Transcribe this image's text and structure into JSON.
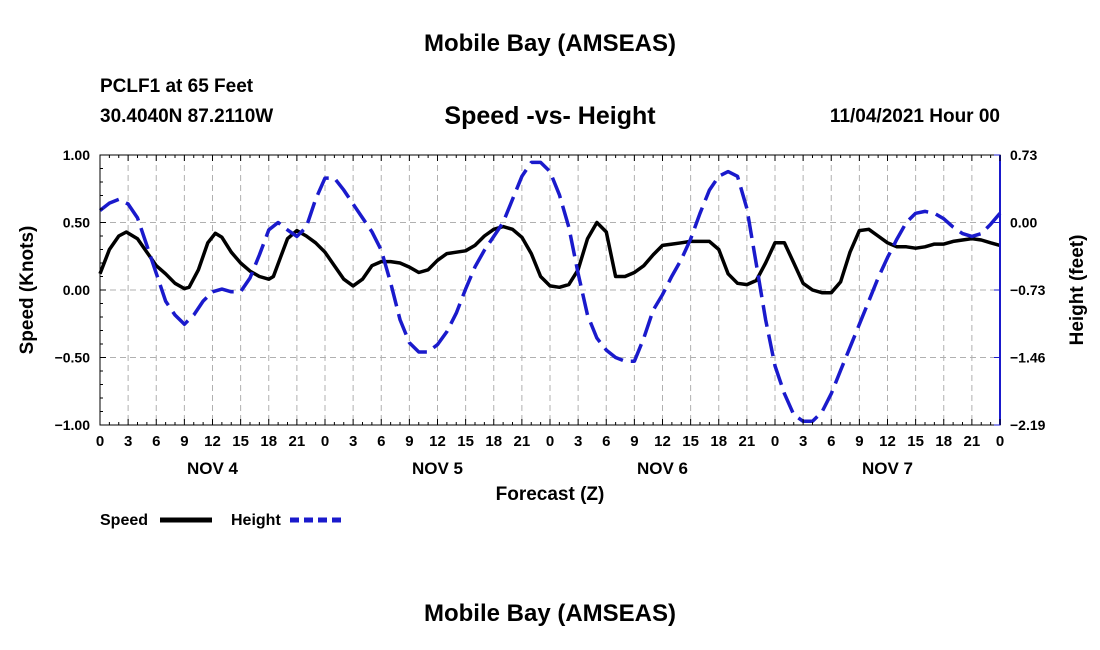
{
  "header": {
    "title": "Mobile Bay (AMSEAS)",
    "station": "PCLF1 at 65 Feet",
    "coords": "30.4040N  87.2110W",
    "subtitle": "Speed -vs- Height",
    "datetime": "11/04/2021 Hour 00"
  },
  "footer": {
    "title": "Mobile Bay (AMSEAS)"
  },
  "colors": {
    "speed": "#000000",
    "height": "#1a1acc",
    "grid": "#b0b0b0"
  },
  "chart_data": {
    "type": "line",
    "title": "Speed -vs- Height",
    "xlabel": "Forecast (Z)",
    "ylabel": "Speed (Knots)",
    "ylabel_right": "Height (feet)",
    "xlim": [
      0,
      96
    ],
    "ylim": [
      -1.0,
      1.0
    ],
    "ylim_right": [
      -2.19,
      0.73
    ],
    "x_tick_labels": [
      "0",
      "3",
      "6",
      "9",
      "12",
      "15",
      "18",
      "21",
      "0",
      "3",
      "6",
      "9",
      "12",
      "15",
      "18",
      "21",
      "0",
      "3",
      "6",
      "9",
      "12",
      "15",
      "18",
      "21",
      "0",
      "3",
      "6",
      "9",
      "12",
      "15",
      "18",
      "21",
      "0"
    ],
    "y_ticks_left": [
      "1.00",
      "0.50",
      "0.00",
      "−0.50",
      "−1.00"
    ],
    "y_ticks_right": [
      "0.73",
      "0.00",
      "−0.73",
      "−1.46",
      "−2.19"
    ],
    "day_labels": [
      {
        "label": "NOV 4",
        "x": 12
      },
      {
        "label": "NOV 5",
        "x": 36
      },
      {
        "label": "NOV 6",
        "x": 60
      },
      {
        "label": "NOV 7",
        "x": 84
      }
    ],
    "series": [
      {
        "name": "Speed",
        "axis": "left",
        "style": "solid",
        "points": [
          [
            0,
            0.12
          ],
          [
            1,
            0.3
          ],
          [
            2,
            0.4
          ],
          [
            2.8,
            0.43
          ],
          [
            4,
            0.38
          ],
          [
            5,
            0.28
          ],
          [
            6,
            0.18
          ],
          [
            7,
            0.12
          ],
          [
            8,
            0.05
          ],
          [
            9,
            0.01
          ],
          [
            9.5,
            0.02
          ],
          [
            10.5,
            0.15
          ],
          [
            11.5,
            0.35
          ],
          [
            12.3,
            0.42
          ],
          [
            13,
            0.39
          ],
          [
            14,
            0.28
          ],
          [
            15,
            0.2
          ],
          [
            16,
            0.14
          ],
          [
            17,
            0.1
          ],
          [
            18,
            0.08
          ],
          [
            18.5,
            0.1
          ],
          [
            19.3,
            0.25
          ],
          [
            20,
            0.38
          ],
          [
            21,
            0.44
          ],
          [
            22,
            0.4
          ],
          [
            23,
            0.35
          ],
          [
            24,
            0.28
          ],
          [
            25,
            0.18
          ],
          [
            26,
            0.08
          ],
          [
            27,
            0.03
          ],
          [
            28,
            0.08
          ],
          [
            29,
            0.18
          ],
          [
            30,
            0.21
          ],
          [
            31,
            0.21
          ],
          [
            32,
            0.2
          ],
          [
            33,
            0.17
          ],
          [
            34,
            0.13
          ],
          [
            35,
            0.15
          ],
          [
            36,
            0.22
          ],
          [
            37,
            0.27
          ],
          [
            38,
            0.28
          ],
          [
            39,
            0.29
          ],
          [
            40,
            0.33
          ],
          [
            41,
            0.4
          ],
          [
            42,
            0.45
          ],
          [
            43,
            0.47
          ],
          [
            44,
            0.45
          ],
          [
            45,
            0.39
          ],
          [
            46,
            0.27
          ],
          [
            47,
            0.1
          ],
          [
            48,
            0.03
          ],
          [
            49,
            0.02
          ],
          [
            50,
            0.04
          ],
          [
            51,
            0.15
          ],
          [
            52,
            0.38
          ],
          [
            53,
            0.5
          ],
          [
            54,
            0.43
          ],
          [
            55,
            0.1
          ],
          [
            56,
            0.1
          ],
          [
            57,
            0.13
          ],
          [
            58,
            0.18
          ],
          [
            59,
            0.26
          ],
          [
            60,
            0.33
          ],
          [
            61,
            0.34
          ],
          [
            62,
            0.35
          ],
          [
            63,
            0.36
          ],
          [
            64,
            0.36
          ],
          [
            65,
            0.36
          ],
          [
            66,
            0.3
          ],
          [
            67,
            0.12
          ],
          [
            68,
            0.05
          ],
          [
            69,
            0.04
          ],
          [
            70,
            0.07
          ],
          [
            71,
            0.2
          ],
          [
            72,
            0.35
          ],
          [
            73,
            0.35
          ],
          [
            74,
            0.2
          ],
          [
            75,
            0.05
          ],
          [
            76,
            0.0
          ],
          [
            77,
            -0.02
          ],
          [
            78,
            -0.02
          ],
          [
            79,
            0.06
          ],
          [
            80,
            0.28
          ],
          [
            81,
            0.44
          ],
          [
            82,
            0.45
          ],
          [
            83,
            0.4
          ],
          [
            84,
            0.35
          ],
          [
            85,
            0.32
          ],
          [
            86,
            0.32
          ],
          [
            87,
            0.31
          ],
          [
            88,
            0.32
          ],
          [
            89,
            0.34
          ],
          [
            90,
            0.34
          ],
          [
            91,
            0.36
          ],
          [
            92,
            0.37
          ],
          [
            93,
            0.38
          ],
          [
            94,
            0.37
          ],
          [
            95,
            0.35
          ],
          [
            96,
            0.33
          ]
        ]
      },
      {
        "name": "Height",
        "axis": "right",
        "style": "dashed",
        "points": [
          [
            0,
            0.13
          ],
          [
            1,
            0.21
          ],
          [
            2,
            0.25
          ],
          [
            3,
            0.2
          ],
          [
            4,
            0.05
          ],
          [
            5,
            -0.25
          ],
          [
            6,
            -0.55
          ],
          [
            7,
            -0.85
          ],
          [
            8,
            -1.0
          ],
          [
            9,
            -1.1
          ],
          [
            10,
            -1.0
          ],
          [
            11,
            -0.85
          ],
          [
            12,
            -0.75
          ],
          [
            13,
            -0.72
          ],
          [
            14,
            -0.75
          ],
          [
            15,
            -0.75
          ],
          [
            16,
            -0.6
          ],
          [
            17,
            -0.35
          ],
          [
            18,
            -0.08
          ],
          [
            19,
            0.0
          ],
          [
            20,
            -0.08
          ],
          [
            21,
            -0.15
          ],
          [
            22,
            -0.05
          ],
          [
            23,
            0.25
          ],
          [
            24,
            0.48
          ],
          [
            25,
            0.48
          ],
          [
            26,
            0.35
          ],
          [
            27,
            0.2
          ],
          [
            28,
            0.05
          ],
          [
            29,
            -0.1
          ],
          [
            30,
            -0.3
          ],
          [
            31,
            -0.65
          ],
          [
            32,
            -1.05
          ],
          [
            33,
            -1.3
          ],
          [
            34,
            -1.4
          ],
          [
            35,
            -1.4
          ],
          [
            36,
            -1.32
          ],
          [
            37,
            -1.18
          ],
          [
            38,
            -0.98
          ],
          [
            39,
            -0.72
          ],
          [
            40,
            -0.48
          ],
          [
            41,
            -0.3
          ],
          [
            42,
            -0.15
          ],
          [
            43,
            0.0
          ],
          [
            44,
            0.25
          ],
          [
            45,
            0.5
          ],
          [
            46,
            0.65
          ],
          [
            47,
            0.65
          ],
          [
            48,
            0.55
          ],
          [
            49,
            0.3
          ],
          [
            50,
            -0.05
          ],
          [
            51,
            -0.55
          ],
          [
            52,
            -1.0
          ],
          [
            53,
            -1.25
          ],
          [
            54,
            -1.38
          ],
          [
            55,
            -1.46
          ],
          [
            56,
            -1.5
          ],
          [
            57,
            -1.5
          ],
          [
            58,
            -1.25
          ],
          [
            59,
            -0.95
          ],
          [
            60,
            -0.78
          ],
          [
            61,
            -0.58
          ],
          [
            62,
            -0.4
          ],
          [
            63,
            -0.18
          ],
          [
            64,
            0.1
          ],
          [
            65,
            0.35
          ],
          [
            66,
            0.5
          ],
          [
            67,
            0.55
          ],
          [
            68,
            0.5
          ],
          [
            69,
            0.15
          ],
          [
            70,
            -0.45
          ],
          [
            71,
            -1.05
          ],
          [
            72,
            -1.55
          ],
          [
            73,
            -1.85
          ],
          [
            74,
            -2.08
          ],
          [
            75,
            -2.15
          ],
          [
            76,
            -2.15
          ],
          [
            77,
            -2.05
          ],
          [
            78,
            -1.85
          ],
          [
            79,
            -1.6
          ],
          [
            80,
            -1.35
          ],
          [
            81,
            -1.1
          ],
          [
            82,
            -0.85
          ],
          [
            83,
            -0.6
          ],
          [
            84,
            -0.38
          ],
          [
            85,
            -0.18
          ],
          [
            86,
            0.0
          ],
          [
            87,
            0.1
          ],
          [
            88,
            0.12
          ],
          [
            89,
            0.1
          ],
          [
            90,
            0.04
          ],
          [
            91,
            -0.05
          ],
          [
            92,
            -0.12
          ],
          [
            93,
            -0.15
          ],
          [
            94,
            -0.12
          ],
          [
            95,
            -0.02
          ],
          [
            96,
            0.1
          ]
        ]
      }
    ],
    "legend": {
      "placement": "bottom-left",
      "entries": [
        {
          "label": "Speed",
          "style": "solid"
        },
        {
          "label": "Height",
          "style": "dashed"
        }
      ]
    }
  }
}
